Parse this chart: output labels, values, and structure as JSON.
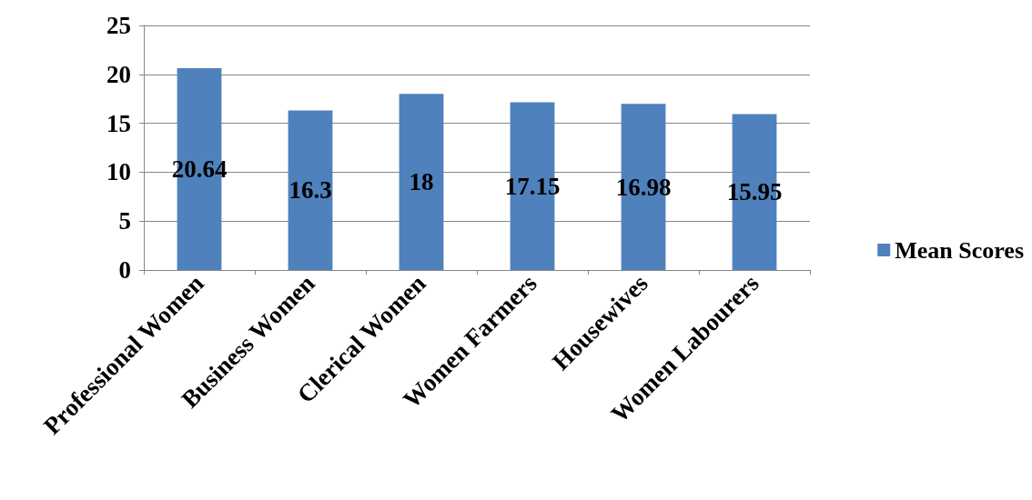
{
  "chart_data": {
    "type": "bar",
    "categories": [
      "Professional Women",
      "Business Women",
      "Clerical Women",
      "Women Farmers",
      "Housewives",
      "Women Labourers"
    ],
    "series": [
      {
        "name": "Mean Scores",
        "color": "#4f81bd",
        "values": [
          20.64,
          16.3,
          18,
          17.15,
          16.98,
          15.95
        ]
      }
    ],
    "ylim": [
      0,
      25
    ],
    "yticks": [
      0,
      5,
      10,
      15,
      20,
      25
    ],
    "grid": "y",
    "legend": "right",
    "data_labels": true
  }
}
